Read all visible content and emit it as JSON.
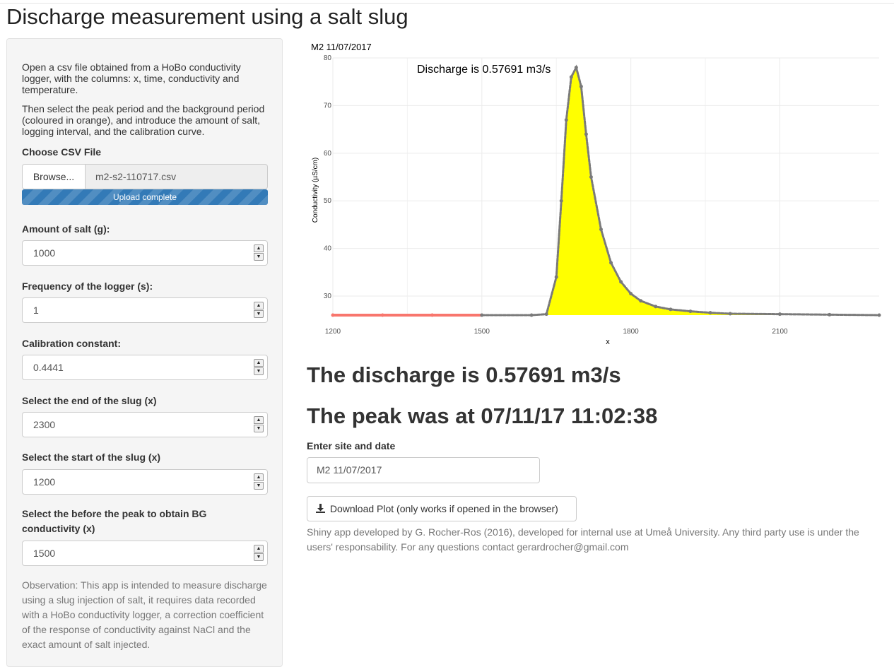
{
  "page": {
    "title": "Discharge measurement using a salt slug"
  },
  "sidebar": {
    "intro1": "Open a csv file obtained from a HoBo conductivity logger, with the columns: x, time, conductivity and temperature.",
    "intro2": "Then select the peak period and the background period (coloured in orange), and introduce the amount of salt, logging interval, and the calibration curve.",
    "file": {
      "label": "Choose CSV File",
      "browse_label": "Browse...",
      "filename": "m2-s2-110717.csv",
      "progress_text": "Upload complete",
      "progress_fraction": 1.0
    },
    "inputs": [
      {
        "label": "Amount of salt (g):",
        "value": "1000"
      },
      {
        "label": "Frequency of the logger (s):",
        "value": "1"
      },
      {
        "label": "Calibration constant:",
        "value": "0.4441"
      },
      {
        "label": "Select the end of the slug (x)",
        "value": "2300"
      },
      {
        "label": "Select the start of the slug (x)",
        "value": "1200"
      },
      {
        "label": "Select the before the peak to obtain BG conductivity (x)",
        "value": "1500"
      }
    ],
    "observation": "Observation: This app is intended to measure discharge using a slug injection of salt, it requires data recorded with a HoBo conductivity logger, a correction coefficient of the response of conductivity against NaCl and the exact amount of salt injected."
  },
  "main": {
    "result_discharge": "The discharge is 0.57691 m3/s",
    "result_peak": "The peak was at 07/11/17 11:02:38",
    "site_label": "Enter site and date",
    "site_value": "M2 11/07/2017",
    "download_label": "Download Plot (only works if opened in the browser)",
    "download_icon": "download-icon",
    "footer": "Shiny app developed by G. Rocher-Ros (2016), developed for internal use at Umeå University. Any third party use is under the users' responsability. For any questions contact gerardrocher@gmail.com"
  },
  "chart_data": {
    "type": "line",
    "title": "M2 11/07/2017",
    "annotation": "Discharge is  0.57691 m3/s",
    "xlabel": "x",
    "ylabel": "Conductivity (µS/cm)",
    "xlim": [
      1200,
      2300
    ],
    "ylim": [
      26,
      80
    ],
    "xticks": [
      1200,
      1500,
      1800,
      2100
    ],
    "yticks": [
      30,
      40,
      50,
      60,
      70,
      80
    ],
    "grid": true,
    "background_end_x": 1500,
    "background_conductivity": 26,
    "peak": {
      "x": 1690,
      "y": 78
    },
    "colors": {
      "background": "#f8766d",
      "series": "#7a7a7a",
      "fill": "#ffff00"
    },
    "series": [
      {
        "x": [
          1200,
          1300,
          1400,
          1500,
          1600,
          1630,
          1650,
          1660,
          1670,
          1680,
          1690,
          1700,
          1710,
          1720,
          1740,
          1760,
          1780,
          1800,
          1820,
          1850,
          1880,
          1920,
          1960,
          2000,
          2100,
          2200,
          2300
        ],
        "y": [
          26,
          26,
          26,
          26,
          26,
          26.2,
          34,
          50,
          67,
          76,
          78,
          74,
          64,
          55,
          44,
          37,
          33,
          30.5,
          29,
          27.8,
          27.2,
          26.8,
          26.5,
          26.3,
          26.2,
          26.1,
          26
        ]
      }
    ]
  }
}
